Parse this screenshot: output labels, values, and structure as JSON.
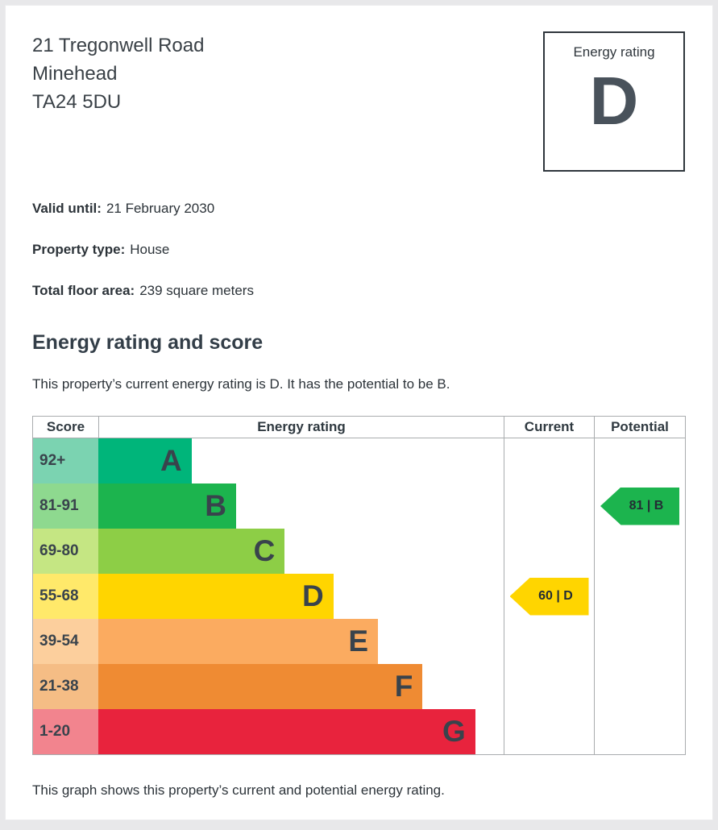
{
  "address": {
    "line1": "21 Tregonwell Road",
    "line2": "Minehead",
    "line3": "TA24 5DU"
  },
  "rating_box": {
    "label": "Energy rating",
    "value": "D"
  },
  "details": {
    "valid_until": {
      "label": "Valid until:",
      "value": "21 February 2030"
    },
    "property_type": {
      "label": "Property type:",
      "value": "House"
    },
    "floor_area": {
      "label": "Total floor area:",
      "value": "239 square meters"
    }
  },
  "section": {
    "title": "Energy rating and score",
    "intro": "This property’s current energy rating is D. It has the potential to be B.",
    "footer": "This graph shows this property’s current and potential energy rating."
  },
  "chart_data": {
    "type": "bar",
    "title": "Energy rating and score",
    "headers": [
      "Score",
      "Energy rating",
      "Current",
      "Potential"
    ],
    "bands": [
      {
        "score": "92+",
        "letter": "A",
        "color": "#00b57a",
        "tint": "#7bd3b1",
        "width_pct": 23
      },
      {
        "score": "81-91",
        "letter": "B",
        "color": "#1cb44e",
        "tint": "#8ed98f",
        "width_pct": 34
      },
      {
        "score": "69-80",
        "letter": "C",
        "color": "#8dce46",
        "tint": "#c5e683",
        "width_pct": 46
      },
      {
        "score": "55-68",
        "letter": "D",
        "color": "#ffd500",
        "tint": "#ffe96a",
        "width_pct": 58
      },
      {
        "score": "39-54",
        "letter": "E",
        "color": "#fbab60",
        "tint": "#fccf9d",
        "width_pct": 69
      },
      {
        "score": "21-38",
        "letter": "F",
        "color": "#ef8b33",
        "tint": "#f5bd85",
        "width_pct": 80
      },
      {
        "score": "1-20",
        "letter": "G",
        "color": "#e8233d",
        "tint": "#f2848e",
        "width_pct": 93
      }
    ],
    "current": {
      "score": 60,
      "band": "D",
      "label": "60 | D",
      "color": "#ffd500"
    },
    "potential": {
      "score": 81,
      "band": "B",
      "label": "81 | B",
      "color": "#1cb44e"
    }
  }
}
